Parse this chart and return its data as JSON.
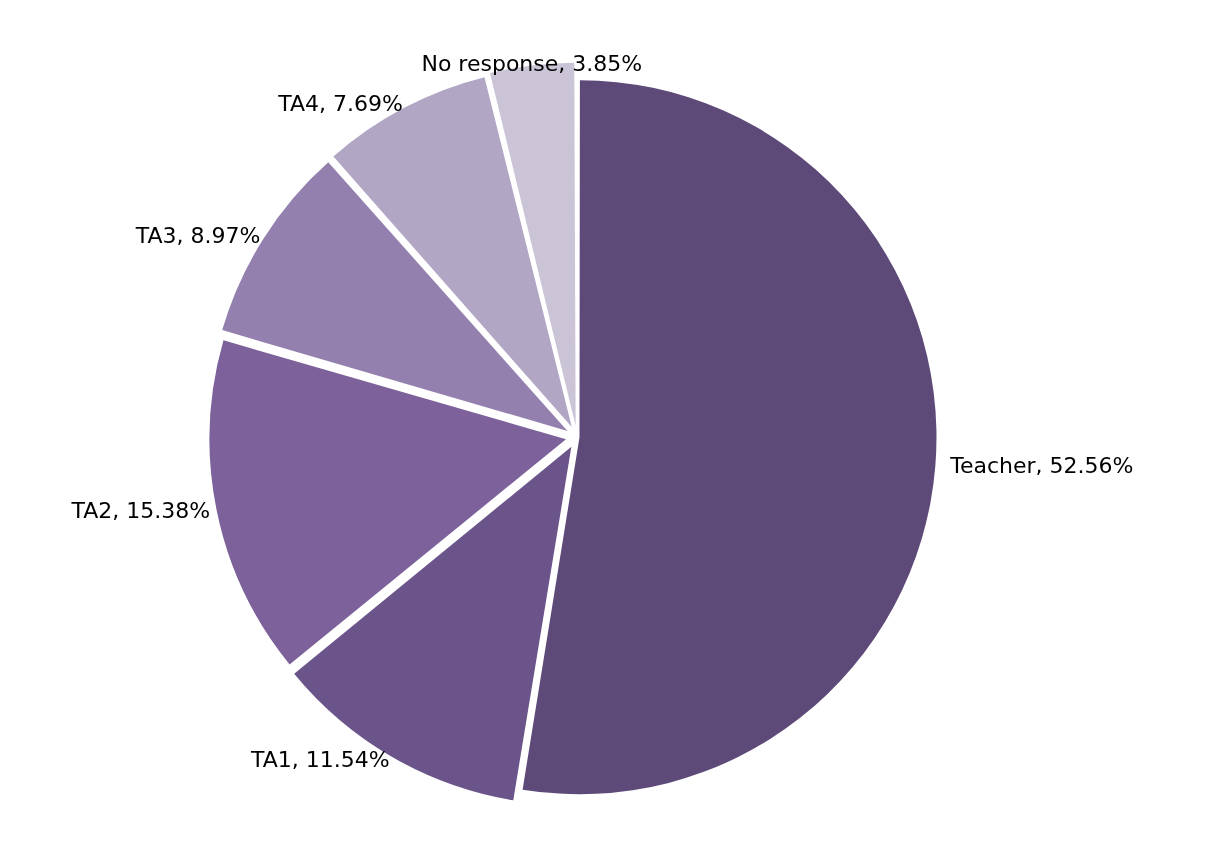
{
  "chart_data": {
    "type": "pie",
    "categories": [
      "Teacher",
      "TA1",
      "TA2",
      "TA3",
      "TA4",
      "No response"
    ],
    "values": [
      52.56,
      11.54,
      15.38,
      8.97,
      7.69,
      3.85
    ],
    "colors": [
      "#5e4a78",
      "#6b548a",
      "#7c619a",
      "#9380ae",
      "#b1a6c4",
      "#cbc4d7"
    ],
    "value_labels": [
      "52.56%",
      "11.54%",
      "15.38%",
      "8.97%",
      "7.69%",
      "3.85%"
    ],
    "legend": false
  }
}
